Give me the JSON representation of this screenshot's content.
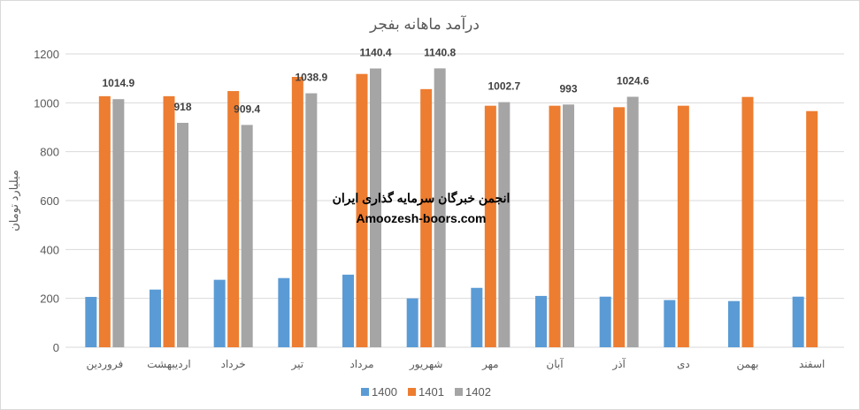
{
  "chart_data": {
    "type": "bar",
    "title": "درآمد ماهانه بفجر",
    "ylabel": "میلیارد تومان",
    "xlabel": "",
    "ylim": [
      0,
      1200
    ],
    "yticks": [
      0,
      200,
      400,
      600,
      800,
      1000,
      1200
    ],
    "grid": true,
    "legend": "bottom",
    "categories": [
      "فروردین",
      "اردیبهشت",
      "خرداد",
      "تیر",
      "مرداد",
      "شهریور",
      "مهر",
      "آبان",
      "آذر",
      "دی",
      "بهمن",
      "اسفند"
    ],
    "series": [
      {
        "name": "1400",
        "color": "#5B9BD5",
        "values": [
          206,
          236,
          276,
          283,
          297,
          200,
          243,
          210,
          207,
          193,
          189,
          207
        ],
        "labels": false
      },
      {
        "name": "1401",
        "color": "#ED7D31",
        "values": [
          1027,
          1027,
          1048,
          1106,
          1118,
          1056,
          988,
          988,
          982,
          988,
          1024,
          966
        ],
        "labels": false
      },
      {
        "name": "1402",
        "color": "#A5A5A5",
        "values": [
          1014.9,
          918,
          909.4,
          1038.9,
          1140.4,
          1140.8,
          1002.7,
          993,
          1024.6,
          null,
          null,
          null
        ],
        "labels": true
      }
    ]
  },
  "watermark": {
    "line1": "انجمن خبرگان سرمایه گذاری ایران",
    "line2": "Amoozesh-boors.com"
  }
}
